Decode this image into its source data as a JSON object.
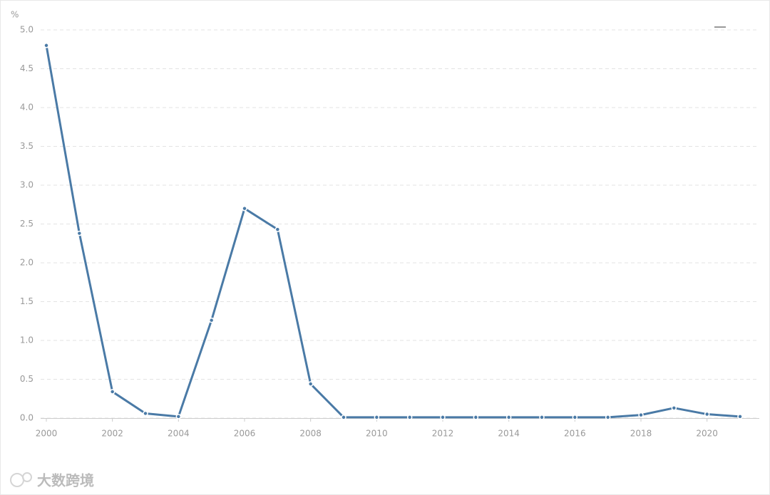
{
  "chart_data": {
    "type": "line",
    "y_unit": "%",
    "watermark": "大数跨境",
    "x": [
      2000,
      2001,
      2002,
      2003,
      2004,
      2005,
      2006,
      2007,
      2008,
      2009,
      2010,
      2011,
      2012,
      2013,
      2014,
      2015,
      2016,
      2017,
      2018,
      2019,
      2020,
      2021
    ],
    "series": [
      {
        "color": "#4a7aa6",
        "values": [
          4.8,
          2.38,
          0.34,
          0.06,
          0.02,
          1.26,
          2.7,
          2.43,
          0.44,
          0.01,
          0.01,
          0.01,
          0.01,
          0.01,
          0.01,
          0.01,
          0.01,
          0.01,
          0.04,
          0.13,
          0.05,
          0.02
        ]
      }
    ],
    "xlim": [
      2000,
      2021
    ],
    "xticks": [
      2000,
      2002,
      2004,
      2006,
      2008,
      2010,
      2012,
      2014,
      2016,
      2018,
      2020
    ],
    "ylim": [
      0,
      5
    ],
    "yticks": [
      {
        "value": 0,
        "label": "0.0"
      },
      {
        "value": 0.5,
        "label": "0.5"
      },
      {
        "value": 1,
        "label": "1.0"
      },
      {
        "value": 1.5,
        "label": "1.5"
      },
      {
        "value": 2,
        "label": "2.0"
      },
      {
        "value": 2.5,
        "label": "2.5"
      },
      {
        "value": 3,
        "label": "3.0"
      },
      {
        "value": 3.5,
        "label": "3.5"
      },
      {
        "value": 4,
        "label": "4.0"
      },
      {
        "value": 4.5,
        "label": "4.5"
      },
      {
        "value": 5,
        "label": "5.0"
      }
    ],
    "grid": true
  }
}
